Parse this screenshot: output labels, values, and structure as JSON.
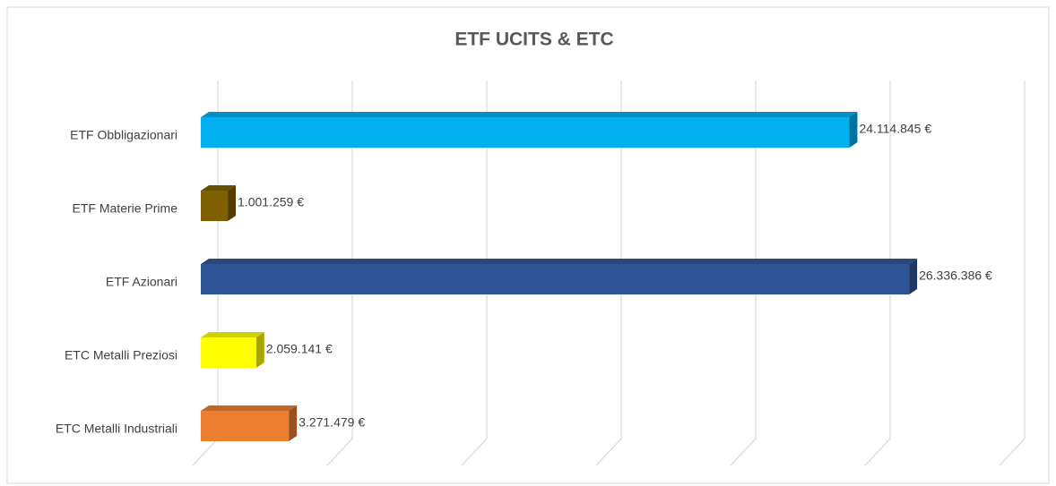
{
  "chart_data": {
    "type": "bar3d",
    "orientation": "horizontal",
    "title": "ETF UCITS & ETC",
    "categories": [
      "ETF Obbligazionari",
      "ETF Materie Prime",
      "ETF Azionari",
      "ETC Metalli Preziosi",
      "ETC Metalli Industriali"
    ],
    "values": [
      24114845,
      1001259,
      26336386,
      2059141,
      3271479
    ],
    "value_labels": [
      "24.114.845 €",
      "1.001.259 €",
      "26.336.386 €",
      "2.059.141 €",
      "3.271.479 €"
    ],
    "colors": [
      "#00b0f0",
      "#7f6000",
      "#2f5597",
      "#ffff00",
      "#ed7d31"
    ],
    "xlim": [
      0,
      30000000
    ],
    "xticks": [
      0,
      5000000,
      10000000,
      15000000,
      20000000,
      25000000,
      30000000
    ],
    "grid": true
  }
}
